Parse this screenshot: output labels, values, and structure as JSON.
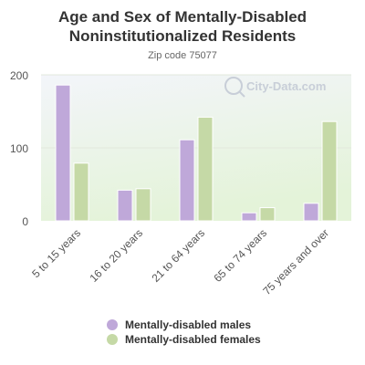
{
  "header": {
    "title": "Age and Sex of Mentally-Disabled Noninstitutionalized Residents",
    "subtitle": "Zip code 75077"
  },
  "watermark": {
    "text": "City-Data.com",
    "icon": "magnifier-icon"
  },
  "colors": {
    "males": "#bfa8d9",
    "females": "#c5d9a6",
    "background_top": "#f3f5fa",
    "background_bottom": "#e4f3d9"
  },
  "chart_data": {
    "type": "bar",
    "categories": [
      "5 to 15 years",
      "16 to 20 years",
      "21 to 64 years",
      "65 to 74 years",
      "75 years and over"
    ],
    "series": [
      {
        "name": "Mentally-disabled males",
        "values": [
          186,
          42,
          111,
          11,
          24
        ]
      },
      {
        "name": "Mentally-disabled females",
        "values": [
          79,
          44,
          142,
          18,
          136
        ]
      }
    ],
    "y_ticks": [
      0,
      100,
      200
    ],
    "ylim": [
      0,
      200
    ],
    "grid": true,
    "legend_position": "bottom"
  }
}
